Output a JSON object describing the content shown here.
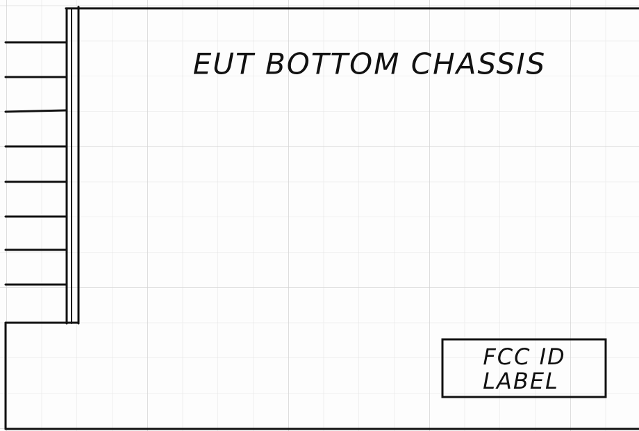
{
  "title": "EUT BOTTOM CHASSIS",
  "label": {
    "lines": [
      "FCC ID",
      "LABEL"
    ]
  }
}
